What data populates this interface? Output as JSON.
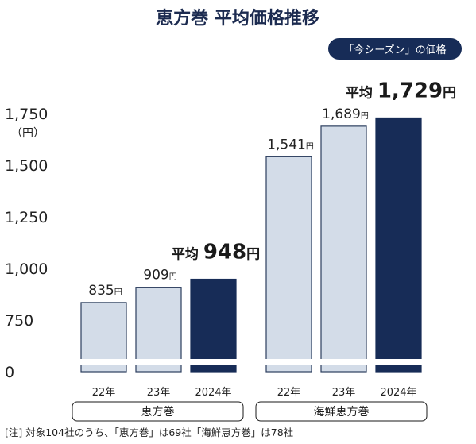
{
  "chart_data": {
    "type": "bar",
    "title": "恵方巻 平均価格推移",
    "unit_label": "（円）",
    "y_ticks": [
      "1,750",
      "1,500",
      "1,250",
      "1,000",
      "750",
      "0"
    ],
    "badge": "「今シーズン」の価格",
    "groups": [
      {
        "name": "恵方巻",
        "categories": [
          "22年",
          "23年",
          "2024年"
        ],
        "values": [
          835,
          909,
          948
        ],
        "value_labels": [
          "835",
          "909",
          ""
        ],
        "average": {
          "prefix": "平均",
          "value": "948",
          "unit": "円"
        }
      },
      {
        "name": "海鮮恵方巻",
        "categories": [
          "22年",
          "23年",
          "2024年"
        ],
        "values": [
          1541,
          1689,
          1729
        ],
        "value_labels": [
          "1,541",
          "1,689",
          ""
        ],
        "average": {
          "prefix": "平均",
          "value": "1,729",
          "unit": "円"
        }
      }
    ],
    "label_unit": "円",
    "colors": {
      "past": "#d3dce8",
      "past_border": "#2c3e5e",
      "current": "#172c57"
    }
  },
  "note": "[注] 対象104社のうち、「恵方巻」は69社「海鮮恵方巻」は78社"
}
